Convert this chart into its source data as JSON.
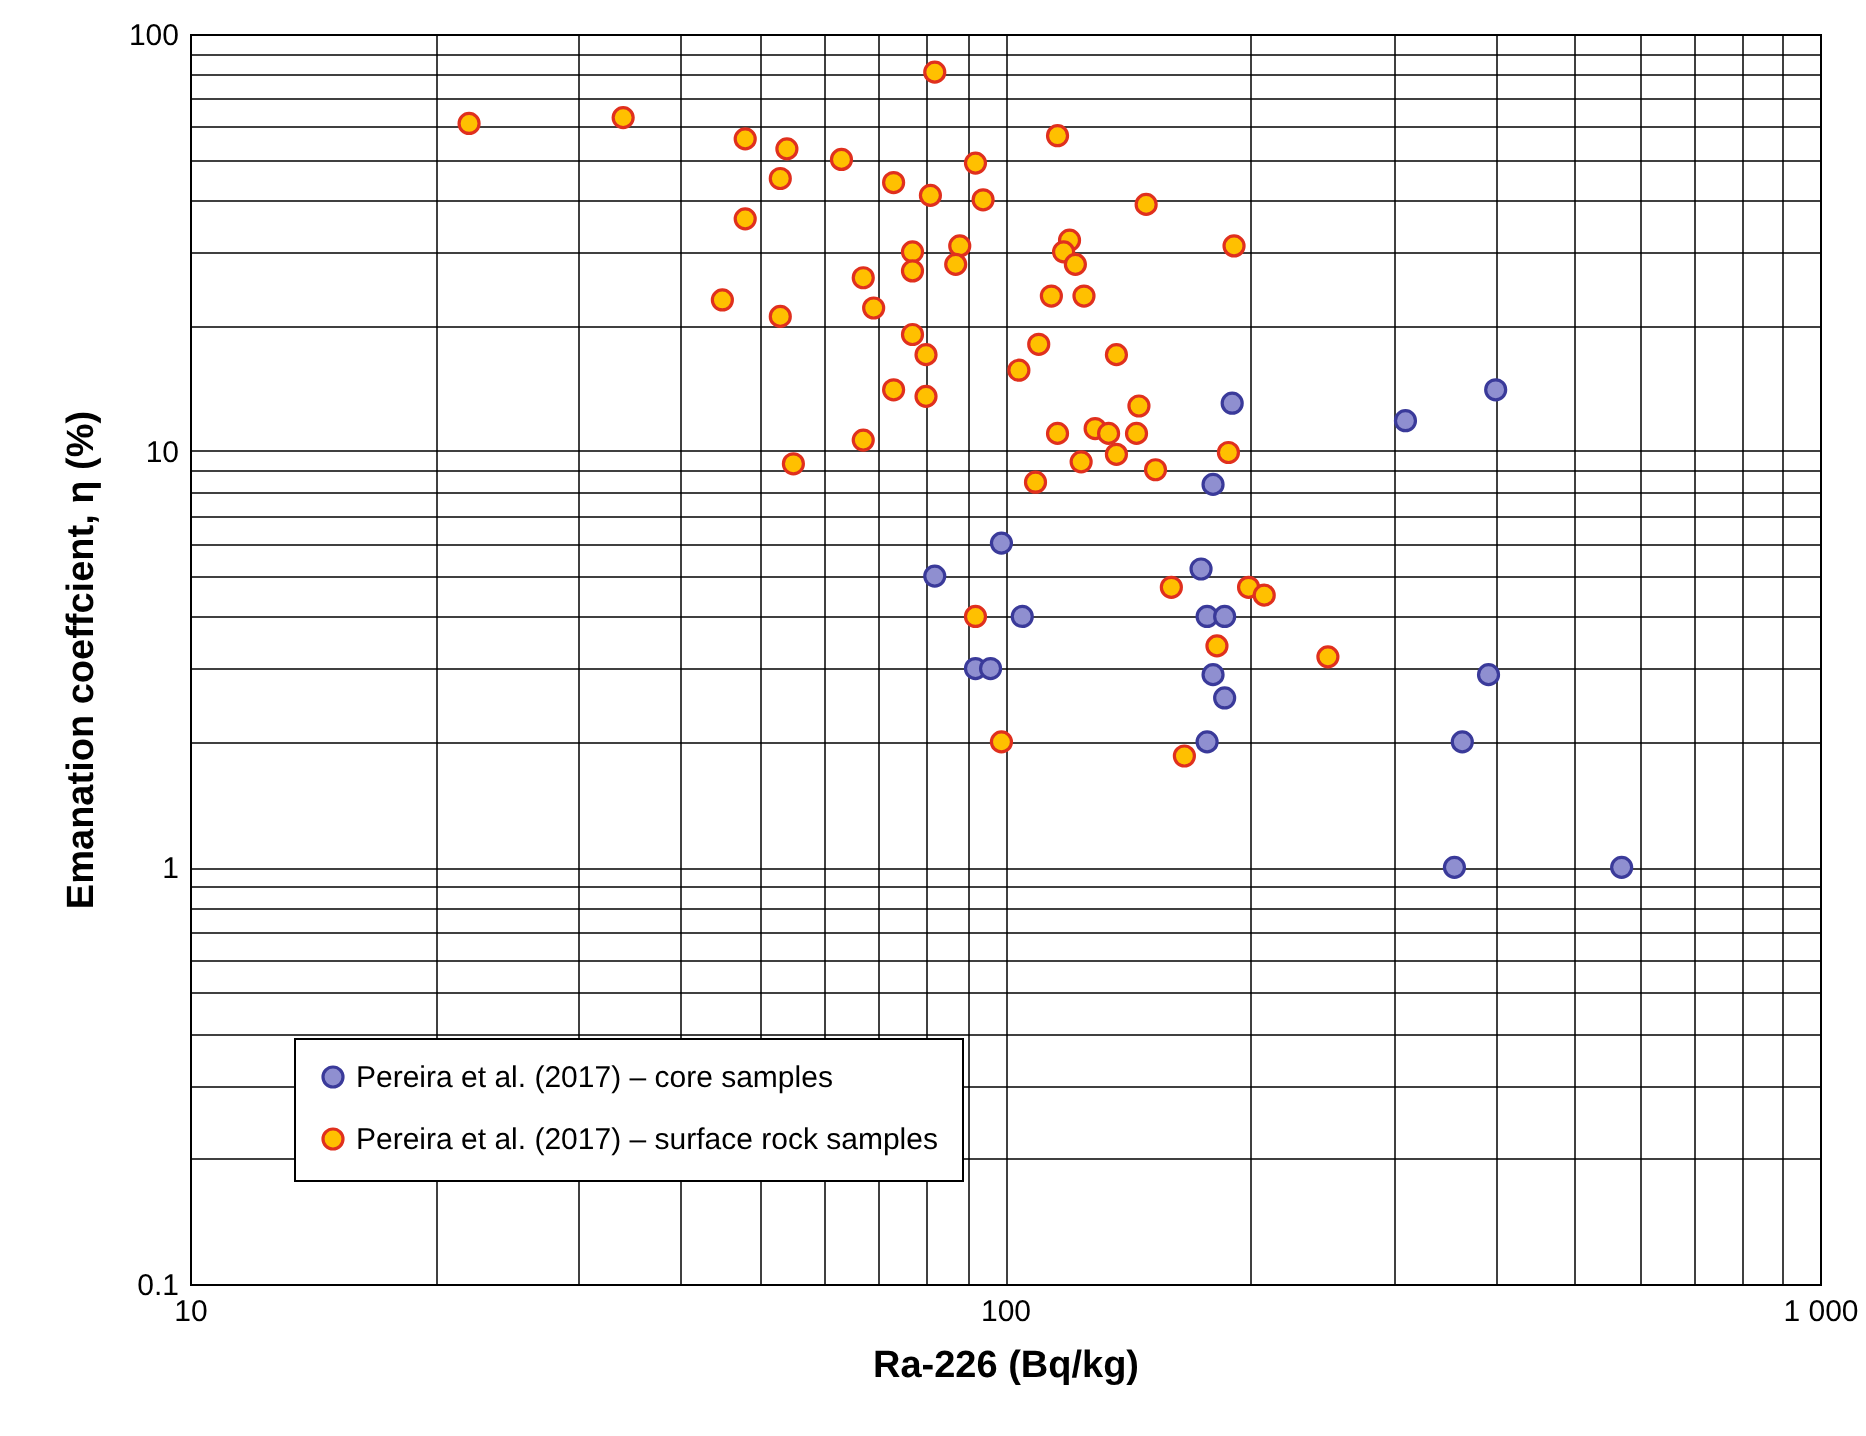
{
  "chart_data": {
    "type": "scatter",
    "xlabel": "Ra-226 (Bq/kg)",
    "ylabel": "Emanation coeffcient, η (%)",
    "log": "xy",
    "grid": true,
    "legend": "bottom left",
    "marker": "circle",
    "xlim": [
      10,
      1000
    ],
    "xticks": [
      10,
      100,
      {
        "value": 1000,
        "label": "1 000"
      }
    ],
    "ylim": [
      0.1,
      100
    ],
    "yticks": [
      0.1,
      1,
      10,
      100
    ],
    "series": [
      {
        "name": "Pereira et al. (2017) – core samples",
        "color": "#8f8fd0",
        "x": [
          82,
          99,
          105,
          92,
          96,
          174,
          177,
          186,
          180,
          186,
          177,
          180,
          190,
          310,
          400,
          392,
          364,
          356,
          571
        ],
        "values": [
          5,
          6,
          4,
          3,
          3,
          5.2,
          4,
          4,
          2.9,
          2.55,
          2,
          8.3,
          13,
          11.8,
          14,
          2.9,
          2,
          1,
          1
        ]
      },
      {
        "name": "Pereira et al. (2017) – surface rock samples",
        "color": "#ffc000",
        "x": [
          22,
          34,
          48,
          54,
          63,
          53,
          48,
          45,
          53,
          73,
          82,
          81,
          92,
          94,
          116,
          77,
          88,
          87,
          77,
          67,
          69,
          77,
          80,
          73,
          80,
          67,
          55,
          120,
          118,
          122,
          114,
          125,
          149,
          191,
          110,
          104,
          137,
          146,
          129,
          134,
          145,
          116,
          137,
          124,
          153,
          188,
          109,
          160,
          199,
          208,
          182,
          249,
          92,
          99,
          166
        ],
        "values": [
          61,
          63,
          56,
          53,
          50,
          45,
          36,
          23,
          21,
          44,
          81,
          41,
          49,
          40,
          57,
          30,
          31,
          28,
          27,
          26,
          22,
          19,
          17,
          14,
          13.5,
          10.6,
          9.3,
          32,
          30,
          28,
          23.5,
          23.5,
          39,
          31,
          18,
          15.6,
          17,
          12.8,
          11.3,
          11,
          11,
          11,
          9.8,
          9.4,
          9,
          9.9,
          8.4,
          4.7,
          4.7,
          4.5,
          3.4,
          3.2,
          4,
          2,
          1.85
        ]
      }
    ]
  }
}
